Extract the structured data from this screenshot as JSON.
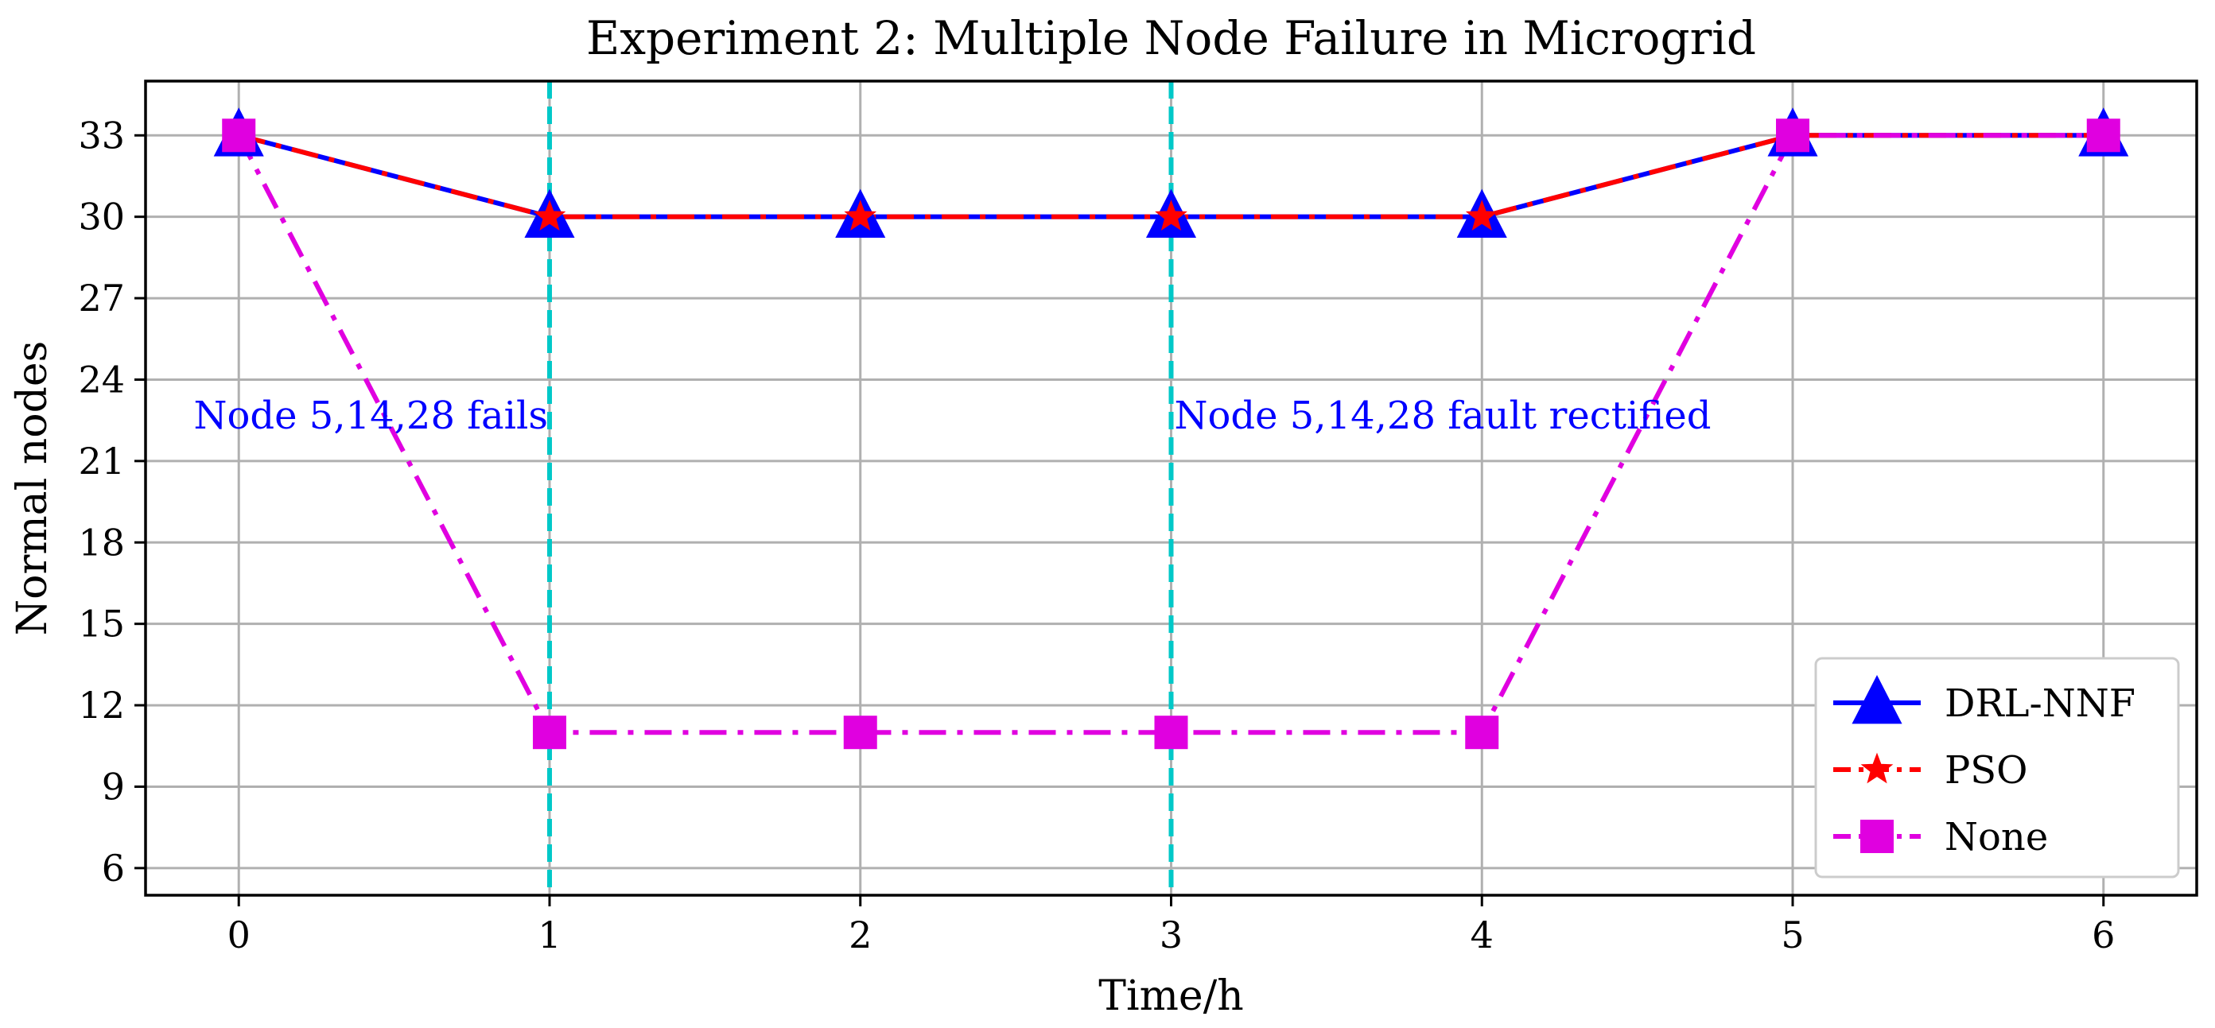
{
  "chart_data": {
    "type": "line",
    "title": "Experiment 2: Multiple Node Failure in Microgrid",
    "xlabel": "Time/h",
    "ylabel": "Normal nodes",
    "x": [
      0,
      1,
      2,
      3,
      4,
      5,
      6
    ],
    "xticks": [
      "0",
      "1",
      "2",
      "3",
      "4",
      "5",
      "6"
    ],
    "yticks": [
      "6",
      "9",
      "12",
      "15",
      "18",
      "21",
      "24",
      "27",
      "30",
      "33"
    ],
    "xlim": [
      -0.3,
      6.3
    ],
    "ylim": [
      5,
      35
    ],
    "grid": true,
    "legend_position": "lower-right",
    "series": [
      {
        "name": "DRL-NNF",
        "values": [
          33,
          30,
          30,
          30,
          30,
          33,
          33
        ],
        "color": "#0000ff",
        "marker": "triangle",
        "line": "solid"
      },
      {
        "name": "PSO",
        "values": [
          33,
          30,
          30,
          30,
          30,
          33,
          33
        ],
        "color": "#ff0000",
        "marker": "star",
        "line": "dashdot"
      },
      {
        "name": "None",
        "values": [
          33,
          11,
          11,
          11,
          11,
          33,
          33
        ],
        "color": "#e000e0",
        "marker": "square",
        "line": "dashdot"
      }
    ],
    "vlines": [
      {
        "x": 1,
        "color": "#00c8c8"
      },
      {
        "x": 3,
        "color": "#00c8c8"
      }
    ],
    "annotations": [
      {
        "text": "Node 5,14,28 fails",
        "x": 1,
        "y": 22.2,
        "anchor": "end",
        "color": "#0000ff"
      },
      {
        "text": "Node 5,14,28 fault rectified",
        "x": 3,
        "y": 22.2,
        "anchor": "start",
        "color": "#0000ff"
      }
    ]
  }
}
